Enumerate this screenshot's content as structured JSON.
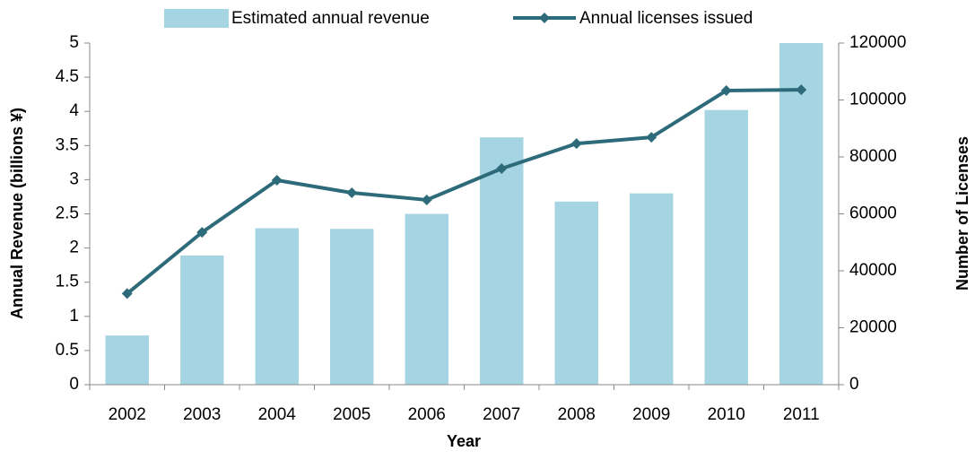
{
  "chart_data": {
    "type": "bar",
    "categories": [
      "2002",
      "2003",
      "2004",
      "2005",
      "2006",
      "2007",
      "2008",
      "2009",
      "2010",
      "2011"
    ],
    "series": [
      {
        "name": "Estimated annual revenue",
        "type": "bar",
        "color": "#a5d5e2",
        "axis": "y",
        "values": [
          0.72,
          1.89,
          2.29,
          2.28,
          2.5,
          3.62,
          2.68,
          2.8,
          4.02,
          5.0
        ]
      },
      {
        "name": "Annual licenses issued",
        "type": "line",
        "color": "#2e6b7a",
        "axis": "y2",
        "values": [
          32000,
          53500,
          71800,
          67400,
          64900,
          75900,
          84700,
          86900,
          103300,
          103600
        ]
      }
    ],
    "x_label": "Year",
    "y_label": "Annual Revenue (billions ¥)",
    "y2_label": "Number of Licenses",
    "ylim": [
      0,
      5
    ],
    "yticks": [
      0,
      0.5,
      1,
      1.5,
      2,
      2.5,
      3,
      3.5,
      4,
      4.5,
      5
    ],
    "y2lim": [
      0,
      120000
    ],
    "y2ticks": [
      0,
      20000,
      40000,
      60000,
      80000,
      100000,
      120000
    ],
    "legend": "top"
  }
}
